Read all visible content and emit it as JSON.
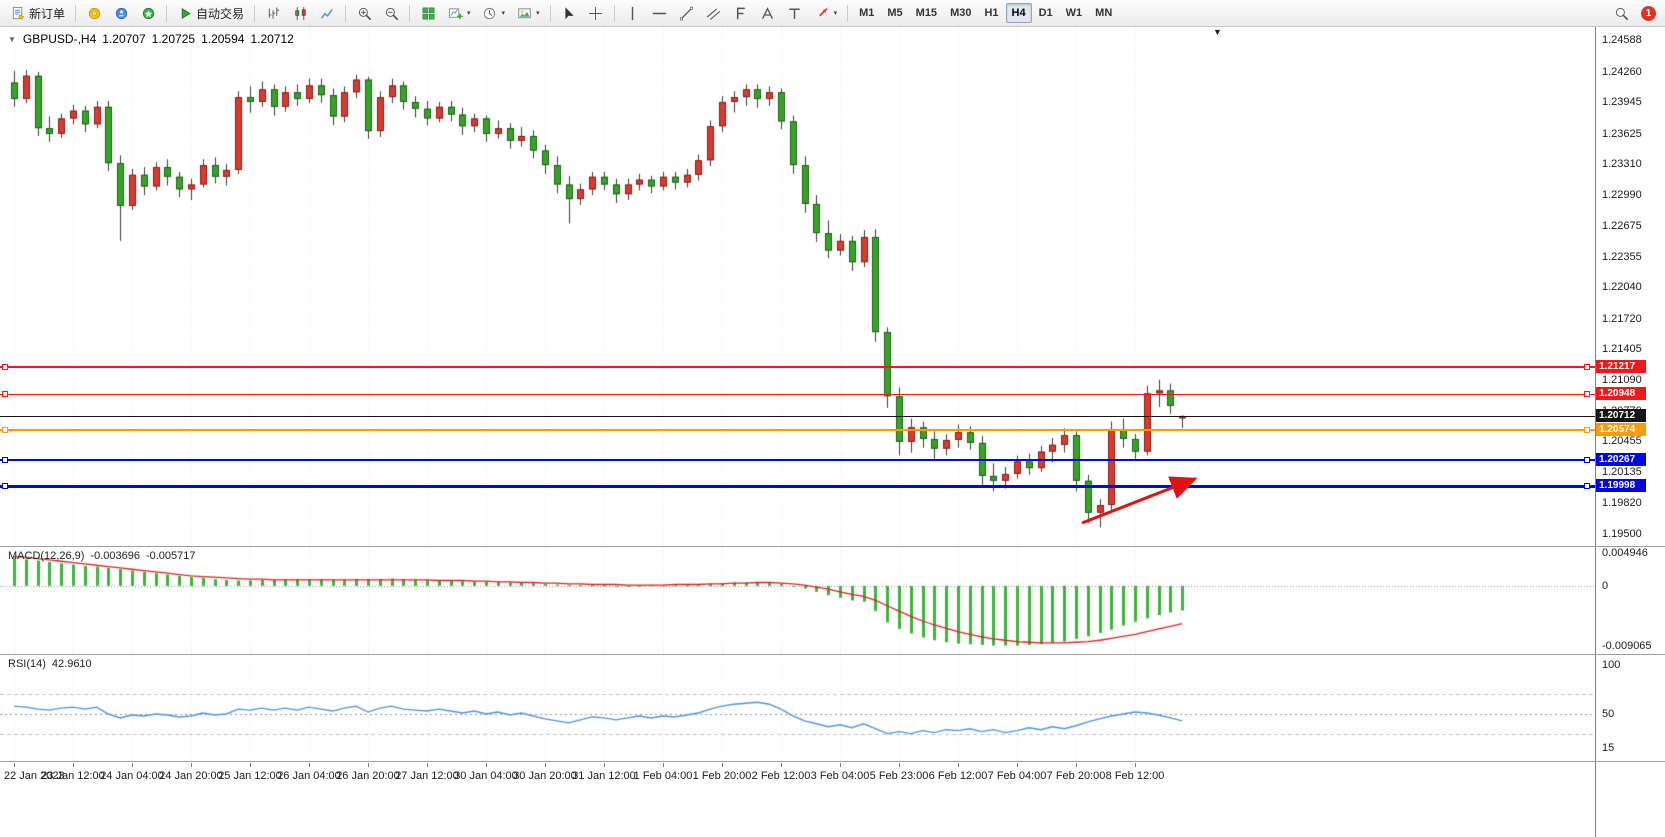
{
  "toolbar": {
    "new_order_label": "新订单",
    "auto_trading_label": "自动交易",
    "quick_icons": [
      "market-watch",
      "data-window",
      "navigator"
    ],
    "chart_type_icons": [
      "bar-chart",
      "candlestick-chart",
      "line-chart"
    ],
    "zoom_icons": [
      "zoom-in",
      "zoom-out"
    ],
    "window_icons": [
      "tile-windows",
      "new-chart",
      "period",
      "templates"
    ],
    "cursor_icons": [
      "cursor",
      "crosshair"
    ],
    "drawing_icons": [
      "vertical-line",
      "horizontal-line",
      "trendline",
      "equidistant-channel",
      "fibonacci",
      "text",
      "text-label",
      "arrows"
    ],
    "dropdown_icons": [
      "new-chart",
      "period",
      "templates",
      "arrows"
    ],
    "timeframes": [
      "M1",
      "M5",
      "M15",
      "M30",
      "H1",
      "H4",
      "D1",
      "W1",
      "MN"
    ],
    "active_timeframe": "H4",
    "notification_badge": "1"
  },
  "glyphs": {
    "expander": "▼",
    "shift_marker": "▼"
  },
  "chart_header": {
    "symbol_period": "GBPUSD-,H4",
    "open": "1.20707",
    "high": "1.20725",
    "low": "1.20594",
    "close": "1.20712"
  },
  "price_axis_labels": [
    "1.24588",
    "1.24260",
    "1.23945",
    "1.23625",
    "1.23310",
    "1.22990",
    "1.22675",
    "1.22355",
    "1.22040",
    "1.21720",
    "1.21405",
    "1.21090",
    "1.20770",
    "1.20455",
    "1.20135",
    "1.19820",
    "1.19500"
  ],
  "lines": [
    {
      "name": "resistance-line-upper",
      "price": 1.21217,
      "label": "1.21217",
      "color": "#f01818",
      "thickness": 2
    },
    {
      "name": "resistance-line-lower",
      "price": 1.20948,
      "label": "1.20948",
      "color": "#f01818",
      "thickness": 1
    },
    {
      "name": "pivot-line-orange",
      "price": 1.20574,
      "label": "1.20574",
      "color": "#ff9c00",
      "thickness": 2
    },
    {
      "name": "support-line-upper",
      "price": 1.20267,
      "label": "1.20267",
      "color": "#0008dd",
      "thickness": 2
    },
    {
      "name": "support-line-lower",
      "price": 1.19998,
      "label": "1.19998",
      "color": "#0008dd",
      "thickness": 3
    }
  ],
  "current_price": {
    "price": 1.20712,
    "label": "1.20712",
    "color": "#151515"
  },
  "time_axis_labels": [
    "22 Jan 2023",
    "23 Jan 12:00",
    "24 Jan 04:00",
    "24 Jan 20:00",
    "25 Jan 12:00",
    "26 Jan 04:00",
    "26 Jan 20:00",
    "27 Jan 12:00",
    "30 Jan 04:00",
    "30 Jan 20:00",
    "31 Jan 12:00",
    "1 Feb 04:00",
    "1 Feb 20:00",
    "2 Feb 12:00",
    "3 Feb 04:00",
    "5 Feb 23:00",
    "6 Feb 12:00",
    "7 Feb 04:00",
    "7 Feb 20:00",
    "8 Feb 12:00"
  ],
  "macd_panel": {
    "title": "MACD(12,26,9)",
    "value": "-0.003696",
    "signal_value": "-0.005717",
    "axis_labels": [
      "0.004946",
      "0",
      "-0.009065"
    ],
    "axis_values": [
      0.004946,
      0,
      -0.009065
    ]
  },
  "rsi_panel": {
    "title": "RSI(14)",
    "value": "42.9610",
    "axis_labels": [
      "100",
      "50",
      "15"
    ],
    "axis_values": [
      100,
      50,
      15
    ]
  },
  "annotation_arrow": {
    "color": "#e01212"
  },
  "chart_data": {
    "type": "candlestick",
    "symbol": "GBPUSD-",
    "timeframe": "H4",
    "price_range": [
      1.1944,
      1.2466
    ],
    "colors": {
      "bull": "#da3b2f",
      "bull_border": "#8a1d15",
      "bear": "#35a527",
      "bear_border": "#1c5f13",
      "wick": "#3a3a3a",
      "macd_hist": "#3bb53b",
      "macd_signal": "#e02020",
      "rsi_line": "#4f95d8"
    },
    "note": "red body = bullish, green body = bearish (CN color convention)",
    "ohlc": [
      [
        1.2415,
        1.2427,
        1.239,
        1.2398
      ],
      [
        1.2398,
        1.2428,
        1.2394,
        1.2422
      ],
      [
        1.2422,
        1.2426,
        1.236,
        1.2368
      ],
      [
        1.2368,
        1.238,
        1.2354,
        1.2362
      ],
      [
        1.2362,
        1.2383,
        1.2358,
        1.2378
      ],
      [
        1.2378,
        1.2392,
        1.2372,
        1.2386
      ],
      [
        1.2386,
        1.2391,
        1.2364,
        1.2372
      ],
      [
        1.2372,
        1.2396,
        1.2368,
        1.239
      ],
      [
        1.239,
        1.2396,
        1.2324,
        1.2332
      ],
      [
        1.2332,
        1.234,
        1.2252,
        1.2288
      ],
      [
        1.2288,
        1.2326,
        1.2284,
        1.232
      ],
      [
        1.232,
        1.2328,
        1.2299,
        1.2308
      ],
      [
        1.2308,
        1.2333,
        1.2304,
        1.2328
      ],
      [
        1.2328,
        1.2336,
        1.2309,
        1.2318
      ],
      [
        1.2318,
        1.2323,
        1.2297,
        1.2305
      ],
      [
        1.2305,
        1.2316,
        1.2294,
        1.231
      ],
      [
        1.231,
        1.2336,
        1.2307,
        1.233
      ],
      [
        1.233,
        1.2338,
        1.2311,
        1.2318
      ],
      [
        1.2318,
        1.2331,
        1.2309,
        1.2325
      ],
      [
        1.2325,
        1.2406,
        1.2321,
        1.24
      ],
      [
        1.24,
        1.2411,
        1.2384,
        1.2395
      ],
      [
        1.2395,
        1.2416,
        1.239,
        1.2408
      ],
      [
        1.2408,
        1.2413,
        1.2381,
        1.239
      ],
      [
        1.239,
        1.2411,
        1.2385,
        1.2405
      ],
      [
        1.2405,
        1.2413,
        1.2391,
        1.2398
      ],
      [
        1.2398,
        1.2419,
        1.2394,
        1.2412
      ],
      [
        1.2412,
        1.2419,
        1.2394,
        1.2402
      ],
      [
        1.2402,
        1.2409,
        1.2371,
        1.238
      ],
      [
        1.238,
        1.2411,
        1.2374,
        1.2405
      ],
      [
        1.2405,
        1.2423,
        1.2399,
        1.2418
      ],
      [
        1.2418,
        1.2421,
        1.2357,
        1.2365
      ],
      [
        1.2365,
        1.2406,
        1.2359,
        1.24
      ],
      [
        1.24,
        1.2419,
        1.2394,
        1.2412
      ],
      [
        1.2412,
        1.2416,
        1.2387,
        1.2395
      ],
      [
        1.2395,
        1.2401,
        1.2379,
        1.2388
      ],
      [
        1.2388,
        1.2396,
        1.2371,
        1.2378
      ],
      [
        1.2378,
        1.2395,
        1.2374,
        1.239
      ],
      [
        1.239,
        1.2396,
        1.2375,
        1.2382
      ],
      [
        1.2382,
        1.2389,
        1.2361,
        1.237
      ],
      [
        1.237,
        1.2383,
        1.2364,
        1.2378
      ],
      [
        1.2378,
        1.2381,
        1.2354,
        1.2362
      ],
      [
        1.2362,
        1.2376,
        1.2357,
        1.2368
      ],
      [
        1.2368,
        1.2373,
        1.2347,
        1.2355
      ],
      [
        1.2355,
        1.2369,
        1.2349,
        1.236
      ],
      [
        1.236,
        1.2366,
        1.2337,
        1.2345
      ],
      [
        1.2345,
        1.2351,
        1.2321,
        1.233
      ],
      [
        1.233,
        1.2339,
        1.2301,
        1.231
      ],
      [
        1.231,
        1.2319,
        1.227,
        1.2295
      ],
      [
        1.2295,
        1.2311,
        1.2289,
        1.2305
      ],
      [
        1.2305,
        1.2323,
        1.2299,
        1.2318
      ],
      [
        1.2318,
        1.2323,
        1.2304,
        1.231
      ],
      [
        1.231,
        1.2316,
        1.2291,
        1.23
      ],
      [
        1.23,
        1.2316,
        1.2294,
        1.231
      ],
      [
        1.231,
        1.2321,
        1.2304,
        1.2315
      ],
      [
        1.2315,
        1.2319,
        1.2301,
        1.2308
      ],
      [
        1.2308,
        1.2323,
        1.2304,
        1.2318
      ],
      [
        1.2318,
        1.2323,
        1.2305,
        1.2312
      ],
      [
        1.2312,
        1.2326,
        1.2307,
        1.232
      ],
      [
        1.232,
        1.2341,
        1.2314,
        1.2335
      ],
      [
        1.2335,
        1.2376,
        1.2329,
        1.237
      ],
      [
        1.237,
        1.2401,
        1.2364,
        1.2395
      ],
      [
        1.2395,
        1.2406,
        1.2384,
        1.24
      ],
      [
        1.24,
        1.2413,
        1.2391,
        1.2408
      ],
      [
        1.2408,
        1.2413,
        1.2389,
        1.2398
      ],
      [
        1.2398,
        1.2411,
        1.2391,
        1.2405
      ],
      [
        1.2405,
        1.2409,
        1.2367,
        1.2375
      ],
      [
        1.2375,
        1.2381,
        1.2321,
        1.233
      ],
      [
        1.233,
        1.2339,
        1.2281,
        1.229
      ],
      [
        1.229,
        1.2299,
        1.2251,
        1.226
      ],
      [
        1.226,
        1.2273,
        1.2234,
        1.2242
      ],
      [
        1.2242,
        1.2259,
        1.2237,
        1.2252
      ],
      [
        1.2252,
        1.2257,
        1.2221,
        1.223
      ],
      [
        1.223,
        1.2263,
        1.2225,
        1.2256
      ],
      [
        1.2256,
        1.2264,
        1.2148,
        1.2158
      ],
      [
        1.2158,
        1.2163,
        1.208,
        1.2092
      ],
      [
        1.2092,
        1.2101,
        1.2031,
        1.2045
      ],
      [
        1.2045,
        1.2069,
        1.2034,
        1.206
      ],
      [
        1.206,
        1.2066,
        1.2039,
        1.2048
      ],
      [
        1.2048,
        1.2056,
        1.2027,
        1.2038
      ],
      [
        1.2038,
        1.2053,
        1.2031,
        1.2047
      ],
      [
        1.2047,
        1.2063,
        1.2039,
        1.2055
      ],
      [
        1.2055,
        1.2061,
        1.2037,
        1.2044
      ],
      [
        1.2044,
        1.2051,
        1.2,
        1.201
      ],
      [
        1.201,
        1.2023,
        1.1994,
        1.2005
      ],
      [
        1.2005,
        1.2019,
        1.1997,
        1.2012
      ],
      [
        1.2012,
        1.2031,
        1.2007,
        1.2025
      ],
      [
        1.2025,
        1.2033,
        1.2011,
        1.2018
      ],
      [
        1.2018,
        1.2041,
        1.2014,
        1.2035
      ],
      [
        1.2035,
        1.2049,
        1.2024,
        1.2042
      ],
      [
        1.2042,
        1.2059,
        1.2034,
        1.2052
      ],
      [
        1.2052,
        1.2056,
        1.1994,
        1.2005
      ],
      [
        1.2005,
        1.2011,
        1.1961,
        1.1972
      ],
      [
        1.1972,
        1.1986,
        1.1957,
        1.198
      ],
      [
        1.198,
        1.2066,
        1.1974,
        1.2058
      ],
      [
        1.2058,
        1.2069,
        1.2039,
        1.2048
      ],
      [
        1.2048,
        1.2053,
        1.2027,
        1.2035
      ],
      [
        1.2035,
        1.2103,
        1.2031,
        1.2095
      ],
      [
        1.2095,
        1.2109,
        1.2081,
        1.2098
      ],
      [
        1.2098,
        1.2105,
        1.2074,
        1.2082
      ],
      [
        1.20707,
        1.20725,
        1.20594,
        1.20712
      ]
    ],
    "macd": {
      "ylim": [
        -0.009065,
        0.004946
      ],
      "histogram": [
        0.0042,
        0.004,
        0.0038,
        0.0036,
        0.0034,
        0.0032,
        0.003,
        0.0029,
        0.0027,
        0.0025,
        0.0023,
        0.0021,
        0.0019,
        0.0017,
        0.0015,
        0.0013,
        0.0012,
        0.001,
        0.0009,
        0.0008,
        0.0008,
        0.0009,
        0.0009,
        0.001,
        0.001,
        0.001,
        0.001,
        0.0009,
        0.0009,
        0.001,
        0.001,
        0.001,
        0.0011,
        0.001,
        0.0009,
        0.0009,
        0.0008,
        0.0008,
        0.0007,
        0.0007,
        0.0006,
        0.0006,
        0.0005,
        0.0005,
        0.0004,
        0.0003,
        0.0002,
        0.0001,
        0.0001,
        0.0001,
        0.0001,
        0,
        0,
        0,
        0.0001,
        0.0001,
        0.0001,
        0.0002,
        0.0002,
        0.0003,
        0.0004,
        0.0005,
        0.0005,
        0.0005,
        0.0005,
        0.0003,
        0,
        -0.0004,
        -0.0009,
        -0.0014,
        -0.0018,
        -0.0022,
        -0.0024,
        -0.0038,
        -0.0055,
        -0.0065,
        -0.0072,
        -0.0078,
        -0.0082,
        -0.0085,
        -0.0087,
        -0.0088,
        -0.0089,
        -0.009,
        -0.009,
        -0.009,
        -0.0089,
        -0.0088,
        -0.0086,
        -0.0084,
        -0.008,
        -0.0076,
        -0.0071,
        -0.0066,
        -0.006,
        -0.0054,
        -0.0049,
        -0.0044,
        -0.004,
        -0.0037
      ],
      "signal": [
        0.0044,
        0.0043,
        0.0041,
        0.0039,
        0.0037,
        0.0035,
        0.0033,
        0.0031,
        0.0029,
        0.0027,
        0.0025,
        0.0023,
        0.0021,
        0.0019,
        0.0017,
        0.0015,
        0.0014,
        0.0013,
        0.0012,
        0.0011,
        0.001,
        0.001,
        0.0009,
        0.0009,
        0.0009,
        0.0009,
        0.0009,
        0.0009,
        0.0009,
        0.0009,
        0.0009,
        0.0009,
        0.0009,
        0.0009,
        0.0009,
        0.0009,
        0.0008,
        0.0008,
        0.0008,
        0.0007,
        0.0007,
        0.0006,
        0.0006,
        0.0005,
        0.0005,
        0.0004,
        0.0004,
        0.0003,
        0.0003,
        0.0002,
        0.0002,
        0.0002,
        0.0001,
        0.0001,
        0.0001,
        0.0001,
        0.0002,
        0.0002,
        0.0002,
        0.0003,
        0.0003,
        0.0004,
        0.0004,
        0.0005,
        0.0005,
        0.0004,
        0.0003,
        0.0001,
        -0.0002,
        -0.0005,
        -0.0009,
        -0.0013,
        -0.0016,
        -0.0022,
        -0.003,
        -0.0038,
        -0.0046,
        -0.0053,
        -0.0059,
        -0.0064,
        -0.0069,
        -0.0073,
        -0.0077,
        -0.008,
        -0.0082,
        -0.0084,
        -0.0085,
        -0.0086,
        -0.0086,
        -0.0086,
        -0.0085,
        -0.0084,
        -0.0082,
        -0.0079,
        -0.0076,
        -0.0073,
        -0.0069,
        -0.0065,
        -0.0061,
        -0.0057
      ]
    },
    "rsi": {
      "ylim": [
        0,
        100
      ],
      "levels": [
        70,
        50,
        30
      ],
      "values": [
        58,
        57,
        55,
        54,
        56,
        57,
        55,
        57,
        50,
        46,
        49,
        48,
        50,
        49,
        47,
        48,
        51,
        49,
        50,
        55,
        54,
        56,
        54,
        56,
        54,
        57,
        55,
        53,
        56,
        58,
        52,
        56,
        58,
        55,
        54,
        53,
        55,
        53,
        51,
        53,
        50,
        52,
        49,
        51,
        48,
        45,
        43,
        41,
        44,
        47,
        46,
        44,
        46,
        48,
        46,
        48,
        47,
        49,
        51,
        55,
        58,
        60,
        61,
        62,
        60,
        55,
        48,
        43,
        40,
        37,
        39,
        36,
        40,
        35,
        30,
        32,
        30,
        33,
        31,
        34,
        33,
        35,
        32,
        34,
        31,
        33,
        36,
        34,
        37,
        35,
        38,
        42,
        45,
        48,
        50,
        52,
        51,
        49,
        46,
        43
      ]
    }
  }
}
